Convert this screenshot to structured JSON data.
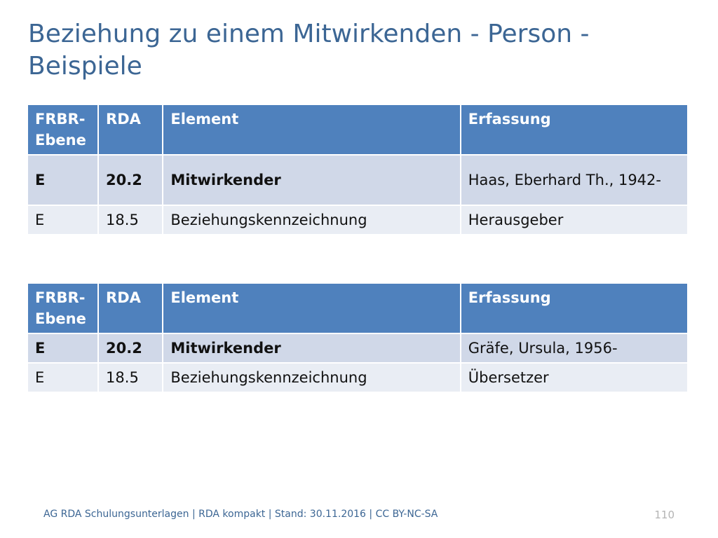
{
  "slide": {
    "title": "Beziehung zu einem Mitwirkenden - Person - Beispiele"
  },
  "tables": [
    {
      "headers": [
        "FRBR-Ebene",
        "RDA",
        "Element",
        "Erfassung"
      ],
      "rows": [
        [
          "E",
          "20.2",
          "Mitwirkender",
          "Haas, Eberhard Th., 1942-"
        ],
        [
          "E",
          "18.5",
          "Beziehungskennzeichnung",
          "Herausgeber"
        ]
      ]
    },
    {
      "headers": [
        "FRBR-Ebene",
        "RDA",
        "Element",
        "Erfassung"
      ],
      "rows": [
        [
          "E",
          "20.2",
          "Mitwirkender",
          "Gräfe, Ursula, 1956-"
        ],
        [
          "E",
          "18.5",
          "Beziehungskennzeichnung",
          "Übersetzer"
        ]
      ]
    }
  ],
  "footer": {
    "text": "AG RDA Schulungsunterlagen | RDA kompakt | Stand: 30.11.2016 | CC BY-NC-SA",
    "page_number": "110"
  }
}
